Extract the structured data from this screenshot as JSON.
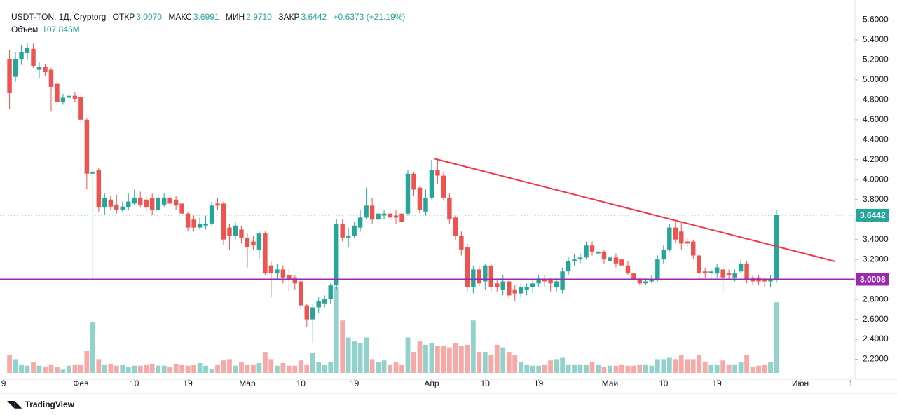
{
  "chart_data": {
    "type": "candlestick",
    "legend": {
      "symbol": "USDT-TON, 1Д, Cryptorg",
      "open_label": "ОТКР",
      "open": "3.0070",
      "high_label": "МАКС",
      "high": "3.6991",
      "low_label": "МИН",
      "low": "2.9710",
      "close_label": "ЗАКР",
      "close": "3.6442",
      "change": "+0.6373 (+21.19%)",
      "volume_label": "Объем",
      "volume": "107.845M"
    },
    "brand": "TradingView",
    "up_color": "#26a69a",
    "down_color": "#ef5350",
    "open": [
      5.21,
      5.03,
      5.21,
      5.27,
      5.31,
      5.1,
      5.13,
      5.1,
      4.96,
      4.78,
      4.82,
      4.84,
      4.83,
      4.6,
      4.06,
      4.1,
      3.72,
      3.8,
      3.75,
      3.7,
      3.72,
      3.76,
      3.82,
      3.8,
      3.82,
      3.7,
      3.75,
      3.82,
      3.8,
      3.76,
      3.66,
      3.6,
      3.52,
      3.54,
      3.56,
      3.76,
      3.76,
      3.52,
      3.44,
      3.5,
      3.42,
      3.38,
      3.3,
      3.46,
      3.14,
      3.06,
      3.1,
      3.04,
      3.02,
      2.98,
      2.74,
      2.6,
      2.72,
      2.76,
      2.8,
      2.94,
      3.56,
      3.42,
      3.44,
      3.52,
      3.62,
      3.74,
      3.6,
      3.64,
      3.66,
      3.64,
      3.66,
      3.66,
      4.06,
      3.92,
      3.68,
      3.82,
      4.1,
      4.04,
      3.82,
      3.62,
      3.44,
      3.32,
      2.92,
      3.1,
      2.98,
      3.14,
      2.96,
      2.9,
      2.98,
      2.9,
      2.86,
      2.9,
      2.92,
      2.96,
      3.0,
      3.0,
      2.92,
      2.9,
      3.08,
      3.18,
      3.2,
      3.22,
      3.34,
      3.26,
      3.28,
      3.18,
      3.22,
      3.2,
      3.14,
      3.06,
      3.0,
      2.96,
      2.98,
      3.0,
      3.2,
      3.3,
      3.52,
      3.48,
      3.38,
      3.38,
      3.24,
      3.08,
      3.06,
      3.06,
      3.1,
      3.06,
      3.02,
      3.08,
      3.16,
      3.02,
      3.02,
      3.0,
      2.98,
      3.007
    ],
    "high": [
      5.3,
      5.28,
      5.35,
      5.37,
      5.36,
      5.18,
      5.16,
      5.12,
      5.0,
      4.86,
      4.9,
      4.88,
      4.86,
      4.62,
      4.12,
      4.12,
      3.86,
      3.84,
      3.85,
      3.78,
      3.86,
      3.9,
      3.88,
      3.84,
      3.86,
      3.86,
      3.86,
      3.85,
      3.84,
      3.78,
      3.68,
      3.64,
      3.62,
      3.64,
      3.78,
      3.82,
      3.78,
      3.56,
      3.58,
      3.54,
      3.46,
      3.44,
      3.48,
      3.48,
      3.18,
      3.16,
      3.14,
      3.1,
      3.04,
      3.0,
      2.76,
      2.76,
      2.82,
      2.84,
      2.96,
      3.6,
      3.6,
      3.52,
      3.58,
      3.7,
      3.92,
      3.82,
      3.72,
      3.7,
      3.72,
      3.7,
      3.7,
      4.1,
      4.08,
      3.94,
      3.9,
      4.2,
      4.2,
      4.08,
      3.86,
      3.64,
      3.48,
      3.36,
      3.14,
      3.14,
      3.16,
      3.16,
      3.0,
      3.04,
      3.02,
      2.94,
      2.96,
      2.96,
      3.0,
      3.04,
      3.04,
      3.02,
      3.02,
      3.12,
      3.22,
      3.26,
      3.26,
      3.38,
      3.38,
      3.32,
      3.3,
      3.26,
      3.26,
      3.24,
      3.18,
      3.08,
      3.02,
      3.02,
      3.04,
      3.24,
      3.34,
      3.56,
      3.58,
      3.58,
      3.42,
      3.4,
      3.26,
      3.12,
      3.12,
      3.16,
      3.14,
      3.1,
      3.1,
      3.2,
      3.18,
      3.04,
      3.04,
      3.02,
      3.04,
      3.6991
    ],
    "low": [
      4.71,
      4.98,
      5.15,
      5.2,
      5.12,
      5.02,
      5.04,
      4.68,
      4.75,
      4.75,
      4.78,
      4.78,
      4.55,
      3.9,
      2.99,
      3.68,
      3.65,
      3.7,
      3.66,
      3.68,
      3.7,
      3.74,
      3.72,
      3.68,
      3.65,
      3.68,
      3.72,
      3.72,
      3.7,
      3.62,
      3.48,
      3.48,
      3.5,
      3.5,
      3.54,
      3.7,
      3.35,
      3.3,
      3.4,
      3.36,
      3.12,
      3.3,
      3.2,
      3.04,
      2.82,
      3.0,
      2.96,
      2.88,
      2.9,
      2.7,
      2.52,
      2.36,
      2.66,
      2.72,
      2.76,
      2.9,
      3.38,
      3.32,
      3.42,
      3.48,
      3.6,
      3.56,
      3.56,
      3.6,
      3.58,
      3.56,
      3.52,
      3.64,
      3.84,
      3.66,
      3.64,
      3.8,
      3.96,
      3.8,
      3.56,
      3.4,
      3.24,
      2.88,
      2.86,
      2.92,
      2.9,
      2.88,
      2.88,
      2.84,
      2.8,
      2.78,
      2.82,
      2.84,
      2.86,
      2.92,
      2.92,
      2.88,
      2.88,
      2.86,
      3.04,
      3.14,
      3.16,
      3.2,
      3.24,
      3.22,
      3.16,
      3.14,
      3.12,
      3.08,
      3.04,
      2.98,
      2.94,
      2.94,
      2.96,
      2.98,
      3.16,
      3.28,
      3.36,
      3.3,
      3.32,
      3.2,
      3.0,
      3.02,
      3.0,
      3.02,
      2.88,
      3.0,
      2.98,
      3.06,
      2.96,
      2.94,
      2.94,
      2.92,
      2.92,
      2.971
    ],
    "close": [
      4.87,
      5.21,
      5.28,
      5.32,
      5.14,
      5.13,
      5.08,
      4.93,
      4.78,
      4.82,
      4.84,
      4.81,
      4.6,
      4.06,
      4.08,
      3.72,
      3.82,
      3.73,
      3.7,
      3.73,
      3.78,
      3.82,
      3.75,
      3.72,
      3.7,
      3.82,
      3.82,
      3.76,
      3.74,
      3.66,
      3.52,
      3.52,
      3.56,
      3.56,
      3.74,
      3.74,
      3.4,
      3.44,
      3.54,
      3.42,
      3.32,
      3.34,
      3.46,
      3.06,
      3.06,
      3.1,
      3.02,
      3.0,
      2.96,
      2.74,
      2.6,
      2.72,
      2.78,
      2.8,
      2.94,
      3.56,
      3.42,
      3.44,
      3.54,
      3.62,
      3.74,
      3.6,
      3.66,
      3.66,
      3.62,
      3.62,
      3.58,
      4.06,
      3.9,
      3.7,
      3.82,
      4.1,
      4.04,
      3.82,
      3.6,
      3.44,
      3.3,
      2.92,
      3.1,
      2.96,
      3.14,
      2.92,
      2.92,
      2.98,
      2.84,
      2.86,
      2.92,
      2.92,
      2.96,
      3.0,
      2.98,
      2.96,
      2.98,
      3.08,
      3.18,
      3.2,
      3.22,
      3.34,
      3.28,
      3.28,
      3.2,
      3.22,
      3.16,
      3.14,
      3.06,
      3.0,
      2.96,
      2.98,
      3.0,
      3.2,
      3.3,
      3.52,
      3.4,
      3.36,
      3.36,
      3.24,
      3.06,
      3.06,
      3.08,
      3.12,
      3.02,
      3.04,
      3.06,
      3.16,
      3.0,
      2.98,
      2.98,
      2.98,
      3.0,
      3.6442
    ],
    "volume": {
      "up_color": "rgba(38,166,154,0.5)",
      "down_color": "rgba(239,83,80,0.5)",
      "ylim": [
        0,
        200
      ],
      "values": [
        27,
        21,
        13,
        11,
        16,
        11,
        9,
        13,
        9,
        5,
        11,
        13,
        13,
        34,
        77,
        21,
        13,
        14,
        11,
        13,
        9,
        11,
        11,
        13,
        14,
        11,
        11,
        9,
        14,
        13,
        11,
        13,
        15,
        11,
        6,
        13,
        19,
        21,
        11,
        16,
        13,
        13,
        15,
        32,
        21,
        11,
        15,
        11,
        11,
        19,
        13,
        30,
        16,
        13,
        16,
        132,
        80,
        54,
        48,
        45,
        54,
        21,
        16,
        19,
        13,
        16,
        13,
        54,
        32,
        48,
        43,
        45,
        41,
        41,
        39,
        45,
        41,
        43,
        80,
        32,
        32,
        27,
        43,
        39,
        32,
        27,
        17,
        13,
        11,
        11,
        13,
        19,
        21,
        24,
        13,
        13,
        13,
        13,
        17,
        13,
        9,
        11,
        11,
        13,
        11,
        11,
        13,
        13,
        11,
        21,
        21,
        24,
        21,
        27,
        21,
        21,
        27,
        16,
        13,
        13,
        19,
        13,
        13,
        16,
        27,
        9,
        11,
        13,
        16,
        107.845
      ]
    },
    "xlim": [
      -1.6,
      142.2
    ],
    "xticks": [
      {
        "value": -1,
        "label": "9"
      },
      {
        "value": 12,
        "label": "Фев"
      },
      {
        "value": 21,
        "label": "10"
      },
      {
        "value": 30,
        "label": "19"
      },
      {
        "value": 40,
        "label": "Мар"
      },
      {
        "value": 49,
        "label": "10"
      },
      {
        "value": 58,
        "label": "19"
      },
      {
        "value": 71,
        "label": "Апр"
      },
      {
        "value": 80,
        "label": "10"
      },
      {
        "value": 89,
        "label": "19"
      },
      {
        "value": 101,
        "label": "Май"
      },
      {
        "value": 110,
        "label": "10"
      },
      {
        "value": 119,
        "label": "19"
      },
      {
        "value": 133,
        "label": "Июн"
      },
      {
        "value": 141.5,
        "label": "1"
      }
    ],
    "ylim": [
      2.0,
      5.8
    ],
    "yticks": [
      {
        "value": 2.2,
        "label": "2.2000"
      },
      {
        "value": 2.4,
        "label": "2.4000"
      },
      {
        "value": 2.6,
        "label": "2.6000"
      },
      {
        "value": 2.8,
        "label": "2.8000"
      },
      {
        "value": 3.0,
        "label": "3.0000"
      },
      {
        "value": 3.2,
        "label": "3.2000"
      },
      {
        "value": 3.4,
        "label": "3.4000"
      },
      {
        "value": 3.6,
        "label": "3.6000"
      },
      {
        "value": 3.8,
        "label": "3.8000"
      },
      {
        "value": 4.0,
        "label": "4.0000"
      },
      {
        "value": 4.2,
        "label": "4.2000"
      },
      {
        "value": 4.4,
        "label": "4.4000"
      },
      {
        "value": 4.6,
        "label": "4.6000"
      },
      {
        "value": 4.8,
        "label": "4.8000"
      },
      {
        "value": 5.0,
        "label": "5.0000"
      },
      {
        "value": 5.2,
        "label": "5.2000"
      },
      {
        "value": 5.4,
        "label": "5.4000"
      },
      {
        "value": 5.6,
        "label": "5.6000"
      }
    ],
    "grid": false,
    "hline": {
      "value": 3.0008,
      "label": "3.0008",
      "color": "#9c27b0"
    },
    "last_price": {
      "value": 3.6442,
      "label": "3.6442",
      "color": "#26a69a"
    },
    "trendline": {
      "x": [
        71.5,
        138.9
      ],
      "y": [
        4.21,
        3.18
      ],
      "color": "#f23645"
    }
  }
}
